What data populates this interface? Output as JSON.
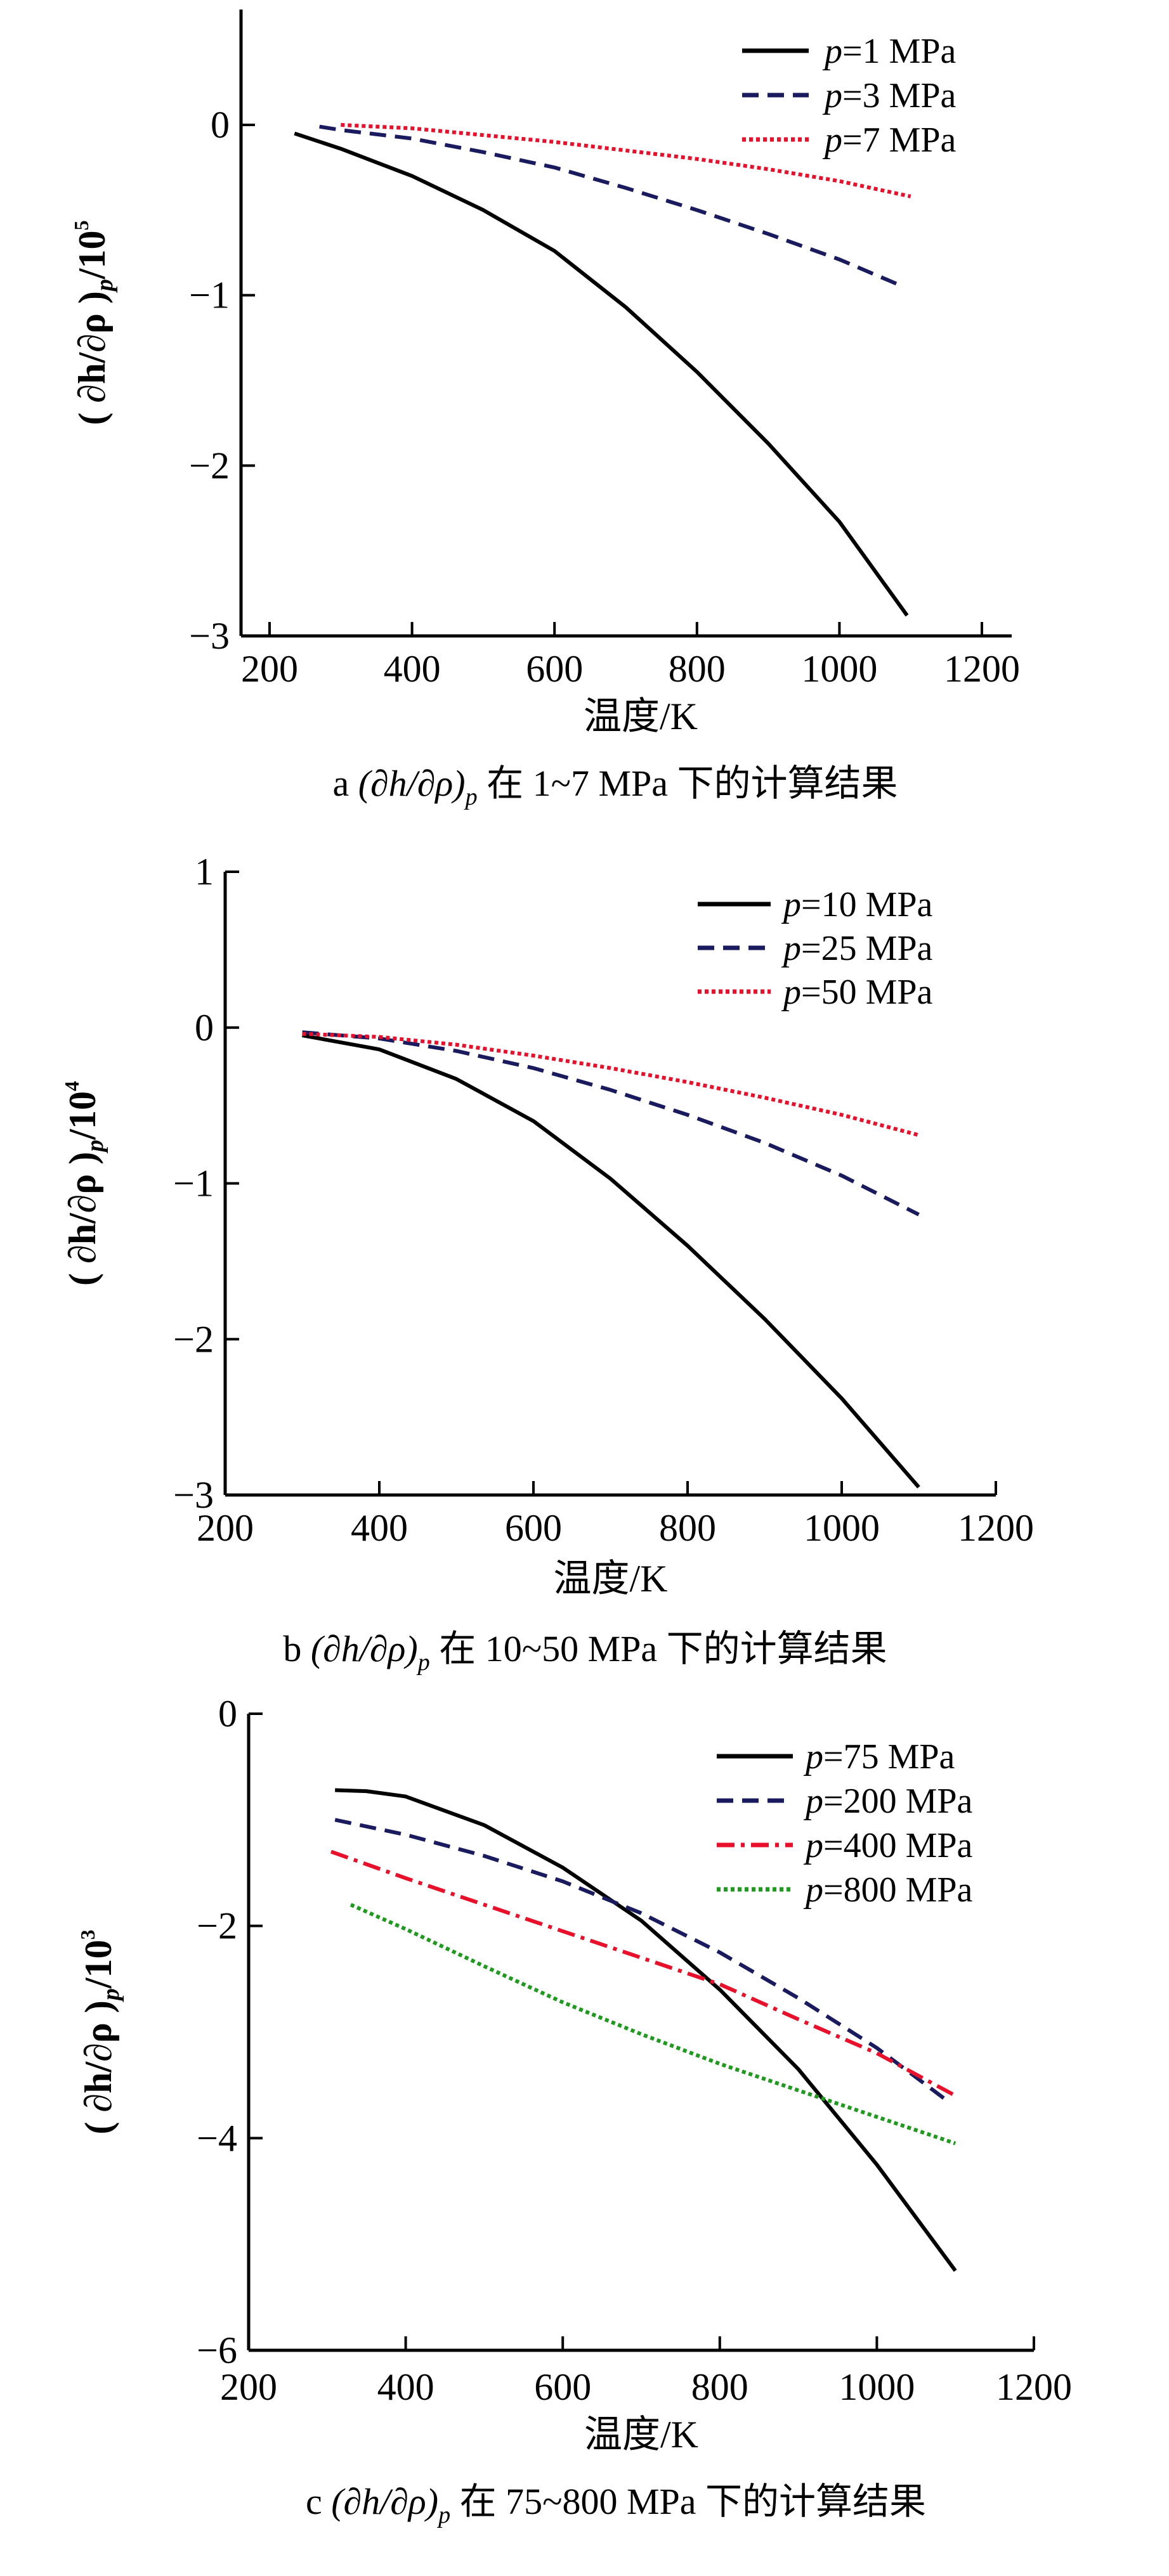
{
  "chart_data": [
    {
      "type": "line",
      "panel": "a",
      "caption": {
        "label": "a",
        "expr": "(∂h/∂ρ)",
        "sub": "p",
        "suffix": " 在 1~7 MPa 下的计算结果"
      },
      "xlabel": "温度/K",
      "ylabel": {
        "expr": "( ∂h/∂ρ )",
        "sub": "p",
        "base": "/10",
        "exp": "5"
      },
      "xlim": [
        200,
        1200
      ],
      "ylim": [
        -3,
        0.7
      ],
      "xticks": [
        200,
        400,
        600,
        800,
        1000,
        1200
      ],
      "yticks": [
        0,
        -1,
        -2,
        -3
      ],
      "ytick_labels": [
        "0",
        "−1",
        "−2",
        "−3"
      ],
      "legend_position": "top-right",
      "series": [
        {
          "name_italic": "p",
          "name": "=1 MPa",
          "color": "#000000",
          "style": "solid",
          "x": [
            235,
            300,
            400,
            500,
            600,
            700,
            800,
            900,
            1000,
            1095
          ],
          "y": [
            -0.05,
            -0.14,
            -0.3,
            -0.5,
            -0.74,
            -1.07,
            -1.45,
            -1.87,
            -2.33,
            -2.88
          ]
        },
        {
          "name_italic": "p",
          "name": "=3 MPa",
          "color": "#1a1a5e",
          "style": "dash",
          "x": [
            270,
            300,
            400,
            500,
            600,
            700,
            800,
            900,
            1000,
            1090
          ],
          "y": [
            -0.01,
            -0.03,
            -0.08,
            -0.16,
            -0.25,
            -0.37,
            -0.5,
            -0.64,
            -0.79,
            -0.95
          ]
        },
        {
          "name_italic": "p",
          "name": "=7 MPa",
          "color": "#e8102a",
          "style": "dot",
          "x": [
            300,
            400,
            500,
            600,
            700,
            800,
            900,
            1000,
            1100
          ],
          "y": [
            0.0,
            -0.02,
            -0.06,
            -0.1,
            -0.15,
            -0.2,
            -0.26,
            -0.33,
            -0.42
          ]
        }
      ]
    },
    {
      "type": "line",
      "panel": "b",
      "caption": {
        "label": "b",
        "expr": "(∂h/∂ρ)",
        "sub": "p",
        "suffix": " 在 10~50 MPa 下的计算结果"
      },
      "xlabel": "温度/K",
      "ylabel": {
        "expr": "( ∂h/∂ρ )",
        "sub": "p",
        "base": "/10",
        "exp": "4"
      },
      "xlim": [
        200,
        1200
      ],
      "ylim": [
        -3,
        1
      ],
      "xticks": [
        200,
        400,
        600,
        800,
        1000,
        1200
      ],
      "yticks": [
        1,
        0,
        -1,
        -2,
        -3
      ],
      "ytick_labels": [
        "1",
        "0",
        "−1",
        "−2",
        "−3"
      ],
      "legend_position": "top-right",
      "series": [
        {
          "name_italic": "p",
          "name": "=10 MPa",
          "color": "#000000",
          "style": "solid",
          "x": [
            300,
            400,
            500,
            600,
            700,
            800,
            900,
            1000,
            1100
          ],
          "y": [
            -0.05,
            -0.14,
            -0.33,
            -0.6,
            -0.97,
            -1.4,
            -1.87,
            -2.38,
            -2.95
          ]
        },
        {
          "name_italic": "p",
          "name": "=25 MPa",
          "color": "#1a1a5e",
          "style": "dash",
          "x": [
            300,
            400,
            500,
            600,
            700,
            800,
            900,
            1000,
            1100
          ],
          "y": [
            -0.03,
            -0.07,
            -0.15,
            -0.26,
            -0.4,
            -0.56,
            -0.74,
            -0.95,
            -1.2
          ]
        },
        {
          "name_italic": "p",
          "name": "=50 MPa",
          "color": "#e8102a",
          "style": "dot",
          "x": [
            300,
            400,
            500,
            600,
            700,
            800,
            900,
            1000,
            1100
          ],
          "y": [
            -0.04,
            -0.06,
            -0.11,
            -0.18,
            -0.26,
            -0.35,
            -0.45,
            -0.56,
            -0.69
          ]
        }
      ]
    },
    {
      "type": "line",
      "panel": "c",
      "caption": {
        "label": "c",
        "expr": "(∂h/∂ρ)",
        "sub": "p",
        "suffix": " 在 75~800 MPa 下的计算结果"
      },
      "xlabel": "温度/K",
      "ylabel": {
        "expr": "( ∂h/∂ρ )",
        "sub": "p",
        "base": "/10",
        "exp": "3"
      },
      "xlim": [
        200,
        1200
      ],
      "ylim": [
        -6,
        0
      ],
      "xticks": [
        200,
        400,
        600,
        800,
        1000,
        1200
      ],
      "yticks": [
        0,
        -2,
        -4,
        -6
      ],
      "ytick_labels": [
        "0",
        "−2",
        "−4",
        "−6"
      ],
      "legend_position": "top-right",
      "series": [
        {
          "name_italic": "p",
          "name": "=75 MPa",
          "color": "#000000",
          "style": "solid",
          "x": [
            310,
            350,
            400,
            500,
            600,
            700,
            800,
            900,
            1000,
            1100
          ],
          "y": [
            -0.72,
            -0.73,
            -0.78,
            -1.05,
            -1.45,
            -1.95,
            -2.6,
            -3.35,
            -4.25,
            -5.25
          ]
        },
        {
          "name_italic": "p",
          "name": "=200 MPa",
          "color": "#1a1a5e",
          "style": "dash",
          "x": [
            310,
            400,
            500,
            600,
            700,
            800,
            900,
            1000,
            1090
          ],
          "y": [
            -1.0,
            -1.14,
            -1.34,
            -1.58,
            -1.88,
            -2.25,
            -2.68,
            -3.15,
            -3.65
          ]
        },
        {
          "name_italic": "p",
          "name": "=400 MPa",
          "color": "#e8102a",
          "style": "dashdot",
          "x": [
            305,
            400,
            500,
            600,
            700,
            800,
            900,
            1000,
            1100
          ],
          "y": [
            -1.3,
            -1.55,
            -1.8,
            -2.05,
            -2.3,
            -2.55,
            -2.88,
            -3.2,
            -3.6
          ]
        },
        {
          "name_italic": "p",
          "name": "=800 MPa",
          "color": "#1f9a1f",
          "style": "dot",
          "x": [
            330,
            400,
            500,
            600,
            700,
            800,
            900,
            1000,
            1100
          ],
          "y": [
            -1.8,
            -2.03,
            -2.38,
            -2.72,
            -3.02,
            -3.3,
            -3.55,
            -3.8,
            -4.05
          ]
        }
      ]
    }
  ]
}
